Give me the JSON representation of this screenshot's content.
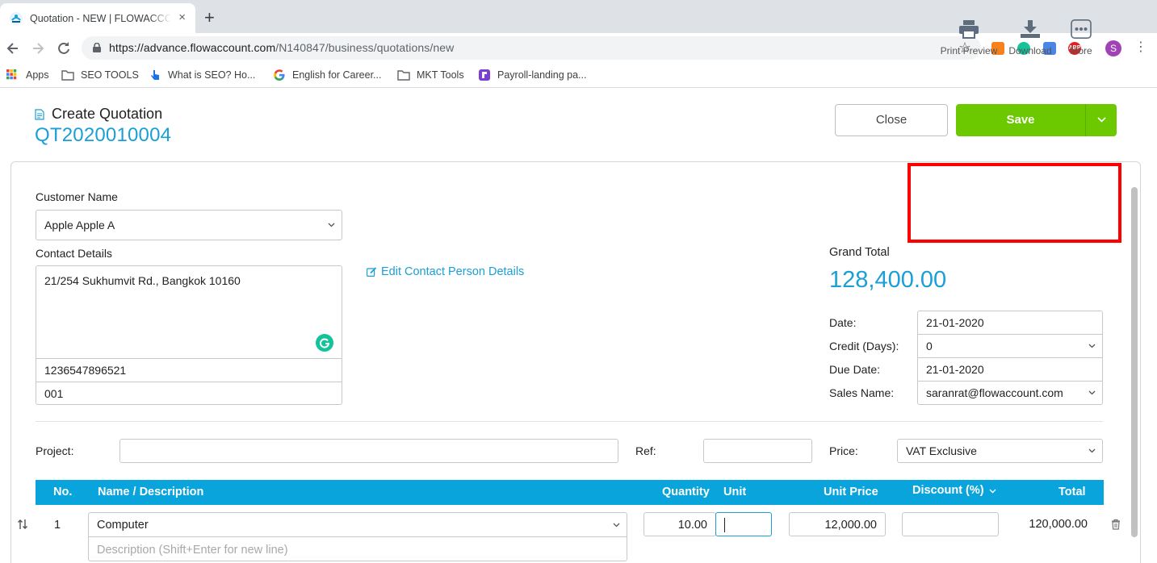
{
  "browser": {
    "tab_title": "Quotation - NEW | FLOWACCOUNT",
    "tab_close": "×",
    "new_tab": "+",
    "url_host": "https://advance.flowaccount.com",
    "url_path": "/N140847/business/quotations/new",
    "profile_initial": "S",
    "bookmarks": {
      "apps": "Apps",
      "seo_tools": "SEO TOOLS",
      "what_is_seo": "What is SEO? Ho...",
      "english_career": "English for Career...",
      "mkt_tools": "MKT Tools",
      "payroll": "Payroll-landing pa..."
    },
    "extensions": {
      "abp": "ABP"
    }
  },
  "header": {
    "title": "Create Quotation",
    "document_number": "QT2020010004",
    "close_label": "Close",
    "save_label": "Save"
  },
  "customer": {
    "name_label": "Customer Name",
    "name_value": "Apple Apple A",
    "contact_label": "Contact Details",
    "address": "21/254 Sukhumvit Rd., Bangkok 10160",
    "tax_id": "1236547896521",
    "branch": "001",
    "edit_contact_link": "Edit Contact Person Details"
  },
  "actions": {
    "print_preview": "Print Preview",
    "download": "Download",
    "more": "More"
  },
  "summary": {
    "grand_total_label": "Grand Total",
    "grand_total_value": "128,400.00",
    "date_label": "Date:",
    "date_value": "21-01-2020",
    "credit_label": "Credit (Days):",
    "credit_value": "0",
    "due_label": "Due Date:",
    "due_value": "21-01-2020",
    "sales_label": "Sales Name:",
    "sales_value": "saranrat@flowaccount.com"
  },
  "meta": {
    "project_label": "Project:",
    "project_value": "",
    "ref_label": "Ref:",
    "ref_value": "",
    "price_label": "Price:",
    "price_value": "VAT Exclusive"
  },
  "table": {
    "headers": {
      "no": "No.",
      "name": "Name / Description",
      "quantity": "Quantity",
      "unit": "Unit",
      "unit_price": "Unit Price",
      "discount": "Discount (%)",
      "total": "Total"
    },
    "rows": [
      {
        "no": "1",
        "name": "Computer",
        "description_placeholder": "Description (Shift+Enter for new line)",
        "quantity": "10.00",
        "unit": "",
        "unit_price": "12,000.00",
        "discount": "",
        "total": "120,000.00"
      }
    ]
  },
  "colors": {
    "accent": "#1a9fd6",
    "table_header": "#0aa4dc",
    "save_green": "#6cc900",
    "highlight_red": "#ff0000"
  }
}
